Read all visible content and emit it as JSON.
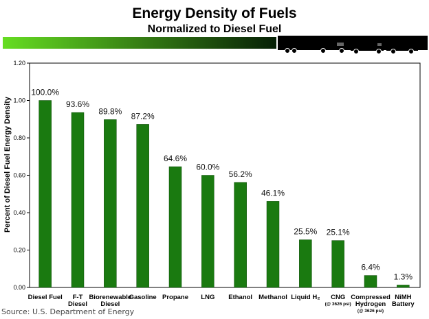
{
  "chart_data": {
    "type": "bar",
    "title": "Energy Density of Fuels",
    "subtitle": "Normalized to Diesel Fuel",
    "ylabel": "Percent of Diesel Fuel Energy Density",
    "ylim": [
      0,
      1.2
    ],
    "yticks": [
      "0.00",
      "0.20",
      "0.40",
      "0.60",
      "0.80",
      "1.00",
      "1.20"
    ],
    "grid": false,
    "legend": "none",
    "bar_color": "#1a7a10",
    "categories": [
      {
        "lines": [
          "Diesel Fuel"
        ]
      },
      {
        "lines": [
          "F-T",
          "Diesel"
        ]
      },
      {
        "lines": [
          "Biorenewable",
          "Diesel"
        ]
      },
      {
        "lines": [
          "Gasoline"
        ]
      },
      {
        "lines": [
          "Propane"
        ]
      },
      {
        "lines": [
          "LNG"
        ]
      },
      {
        "lines": [
          "Ethanol"
        ]
      },
      {
        "lines": [
          "Methanol"
        ]
      },
      {
        "lines": [
          "Liquid H₂"
        ]
      },
      {
        "lines": [
          "CNG"
        ],
        "note": "(@ 3626 psi)"
      },
      {
        "lines": [
          "Compressed",
          "Hydrogen"
        ],
        "note": "(@ 3626 psi)"
      },
      {
        "lines": [
          "NiMH",
          "Battery"
        ]
      }
    ],
    "values": [
      1.0,
      0.936,
      0.898,
      0.872,
      0.646,
      0.6,
      0.562,
      0.461,
      0.255,
      0.251,
      0.064,
      0.013
    ],
    "data_labels": [
      "100.0%",
      "93.6%",
      "89.8%",
      "87.2%",
      "64.6%",
      "60.0%",
      "56.2%",
      "46.1%",
      "25.5%",
      "25.1%",
      "6.4%",
      "1.3%"
    ]
  },
  "banner": {
    "gradient_start": "#66dd22",
    "gradient_end": "#062006",
    "panel_color": "#000000",
    "icons": [
      "tractor-trailer-icon",
      "box-truck-icon",
      "pickup-truck-icon"
    ]
  },
  "source": "Source: U.S. Department of Energy"
}
